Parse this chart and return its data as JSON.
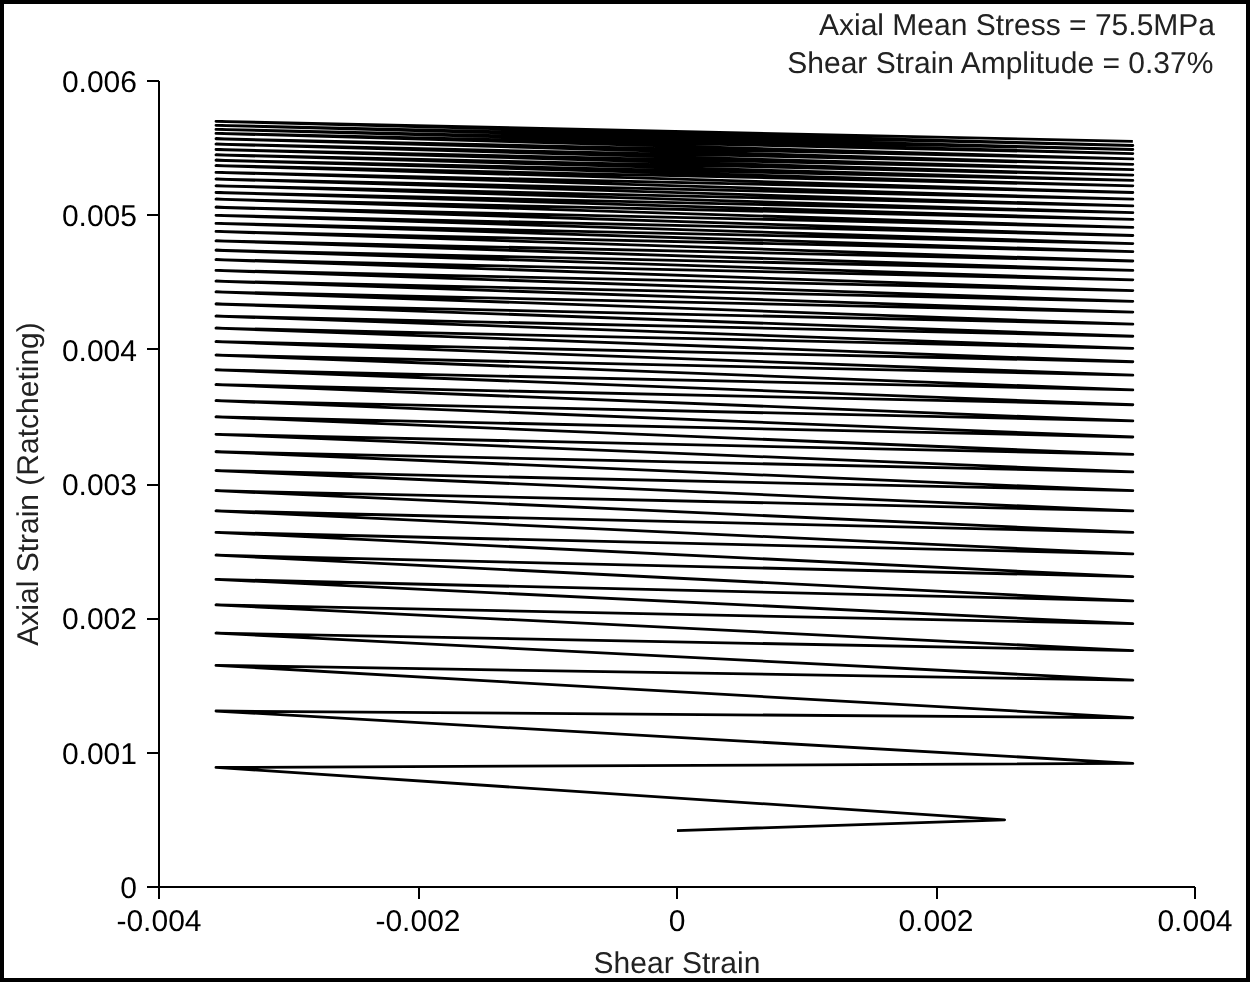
{
  "chart_data": {
    "type": "line",
    "xlabel": "Shear Strain",
    "ylabel": "Axial Strain (Ratcheting)",
    "annotations": [
      "Axial Mean Stress = 75.5MPa",
      "Shear Strain Amplitude = 0.37%"
    ],
    "xlim": [
      -0.004,
      0.004
    ],
    "ylim": [
      0,
      0.006
    ],
    "xticks": [
      -0.004,
      -0.002,
      0,
      0.002,
      0.004
    ],
    "yticks": [
      0,
      0.001,
      0.002,
      0.003,
      0.004,
      0.005,
      0.006
    ],
    "grid": false,
    "marker": "none",
    "line_style": "solid",
    "series": [
      {
        "color": "#000000",
        "x": [
          0,
          0.00253,
          -0.00356,
          0.00352,
          -0.00356,
          0.00352,
          -0.00356,
          0.00352,
          -0.00356,
          0.00352,
          -0.00356,
          0.00352,
          -0.00356,
          0.00352,
          -0.00356,
          0.00352,
          -0.00356,
          0.00352,
          -0.00356,
          0.00352,
          -0.00356,
          0.00352,
          -0.00356,
          0.00352,
          -0.00356,
          0.00352,
          -0.00356,
          0.00352,
          -0.00356,
          0.00352,
          -0.00356,
          0.00352,
          -0.00356,
          0.00352,
          -0.00356,
          0.00352,
          -0.00356,
          0.00352,
          -0.00356,
          0.00352,
          -0.00356,
          0.00352,
          -0.00356,
          0.00352,
          -0.00356,
          0.00352,
          -0.00356,
          0.00352,
          -0.00356,
          0.00352,
          -0.00356,
          0.00352,
          -0.00356,
          0.00352,
          -0.00356,
          0.00352,
          -0.00356,
          0.00352,
          -0.00356,
          0.00352,
          -0.00356,
          0.00352,
          -0.00356,
          0.00352,
          -0.00356,
          0.00352,
          -0.00356,
          0.00352,
          -0.00356,
          0.00352,
          -0.00356,
          0.00352,
          -0.00356,
          0.00352,
          -0.00356,
          0.00352,
          -0.00356,
          0.00352,
          -0.00356,
          0.00352,
          -0.00356,
          0.00352,
          -0.00356,
          0.00352,
          -0.00356,
          0.00352,
          -0.00356,
          0.00352,
          -0.00356,
          0.00352,
          -0.00356,
          0.00352,
          -0.00356,
          0.00352,
          -0.00356,
          0.00352
        ],
        "values": [
          0.00042,
          0.0005,
          0.00089,
          0.00092,
          0.00131,
          0.00126,
          0.00165,
          0.00154,
          0.00189,
          0.00176,
          0.0021,
          0.00196,
          0.00229,
          0.00213,
          0.00247,
          0.00231,
          0.00264,
          0.00248,
          0.0028,
          0.00264,
          0.00295,
          0.0028,
          0.0031,
          0.00295,
          0.00324,
          0.00309,
          0.00337,
          0.00322,
          0.0035,
          0.00335,
          0.00362,
          0.00347,
          0.00374,
          0.00359,
          0.00385,
          0.0037,
          0.00396,
          0.00381,
          0.00406,
          0.00391,
          0.00416,
          0.00401,
          0.00425,
          0.0041,
          0.00434,
          0.00419,
          0.00443,
          0.00428,
          0.00451,
          0.00436,
          0.00459,
          0.00444,
          0.00467,
          0.00452,
          0.00474,
          0.00459,
          0.00481,
          0.00466,
          0.00488,
          0.00473,
          0.00494,
          0.00479,
          0.005,
          0.00485,
          0.00506,
          0.00491,
          0.00512,
          0.00497,
          0.00517,
          0.00502,
          0.00522,
          0.00507,
          0.00527,
          0.00512,
          0.00532,
          0.00517,
          0.00537,
          0.00522,
          0.00541,
          0.00526,
          0.00545,
          0.0053,
          0.00549,
          0.00534,
          0.00553,
          0.00538,
          0.00557,
          0.00542,
          0.00561,
          0.00546,
          0.00564,
          0.00549,
          0.00567,
          0.00552,
          0.0057,
          0.00555
        ]
      }
    ]
  }
}
